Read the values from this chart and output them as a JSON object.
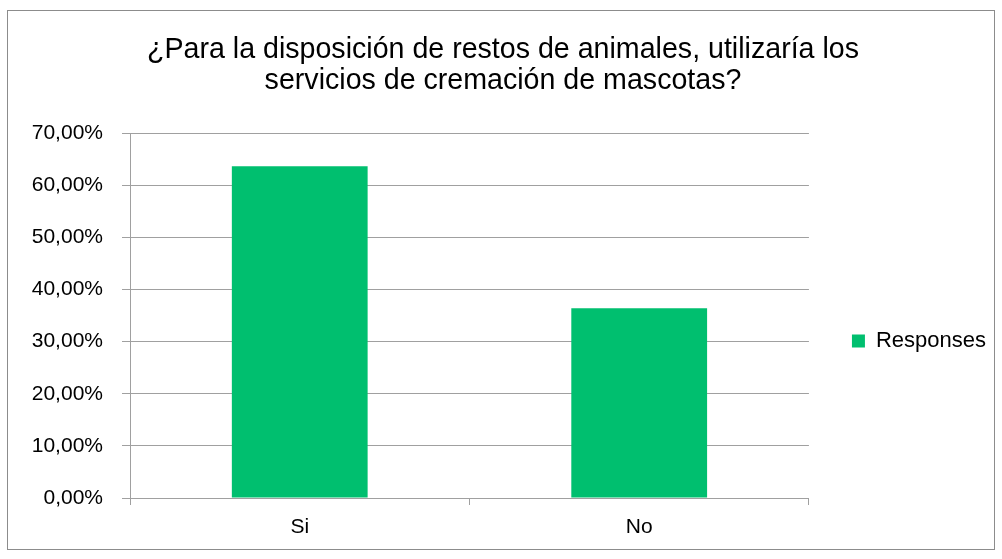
{
  "chart_data": {
    "type": "bar",
    "title": "¿Para la disposición de restos de animales, utilizaría los servicios de cremación de mascotas?",
    "categories": [
      "Si",
      "No"
    ],
    "series": [
      {
        "name": "Responses",
        "color": "#00bf6f",
        "values": [
          63.6,
          36.4
        ]
      }
    ],
    "ylim": [
      0,
      70
    ],
    "yticks": [
      {
        "value": 0,
        "label": "0,00%"
      },
      {
        "value": 10,
        "label": "10,00%"
      },
      {
        "value": 20,
        "label": "20,00%"
      },
      {
        "value": 30,
        "label": "30,00%"
      },
      {
        "value": 40,
        "label": "40,00%"
      },
      {
        "value": 50,
        "label": "50,00%"
      },
      {
        "value": 60,
        "label": "60,00%"
      },
      {
        "value": 70,
        "label": "70,00%"
      }
    ],
    "grid": "y",
    "legend": "right"
  }
}
